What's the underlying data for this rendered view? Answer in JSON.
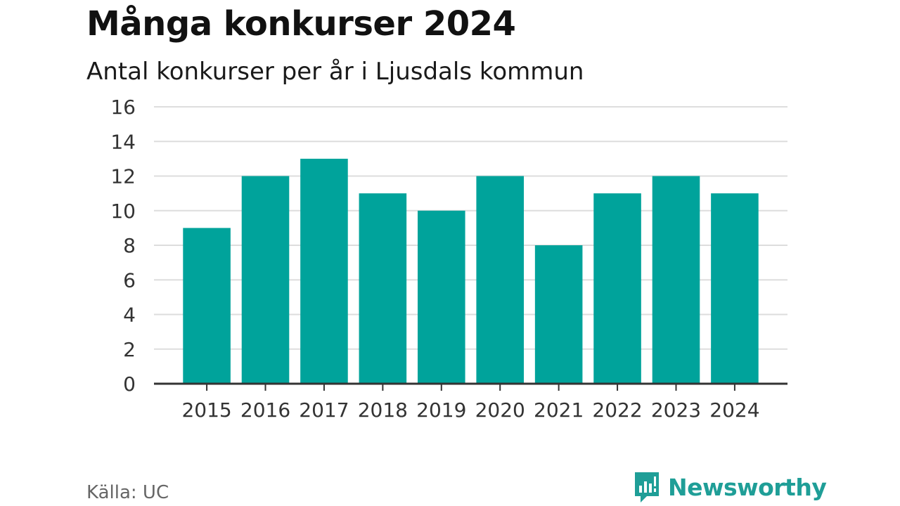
{
  "header": {
    "title": "Många konkurser 2024",
    "subtitle": "Antal konkurser per år i Ljusdals kommun"
  },
  "footer": {
    "source": "Källa: UC",
    "brand": "Newsworthy",
    "brand_icon": "newsworthy-logo-icon"
  },
  "colors": {
    "bar": "#00a39b",
    "grid": "#dddddd",
    "axis": "#333333",
    "brand": "#1f9e97"
  },
  "chart_data": {
    "type": "bar",
    "title": "Många konkurser 2024",
    "subtitle": "Antal konkurser per år i Ljusdals kommun",
    "categories": [
      "2015",
      "2016",
      "2017",
      "2018",
      "2019",
      "2020",
      "2021",
      "2022",
      "2023",
      "2024"
    ],
    "values": [
      9,
      12,
      13,
      11,
      10,
      12,
      8,
      11,
      12,
      11
    ],
    "ylim": [
      0,
      16
    ],
    "yticks": [
      0,
      2,
      4,
      6,
      8,
      10,
      12,
      14,
      16
    ],
    "xlabel": "",
    "ylabel": "",
    "grid": true,
    "legend": "none"
  }
}
